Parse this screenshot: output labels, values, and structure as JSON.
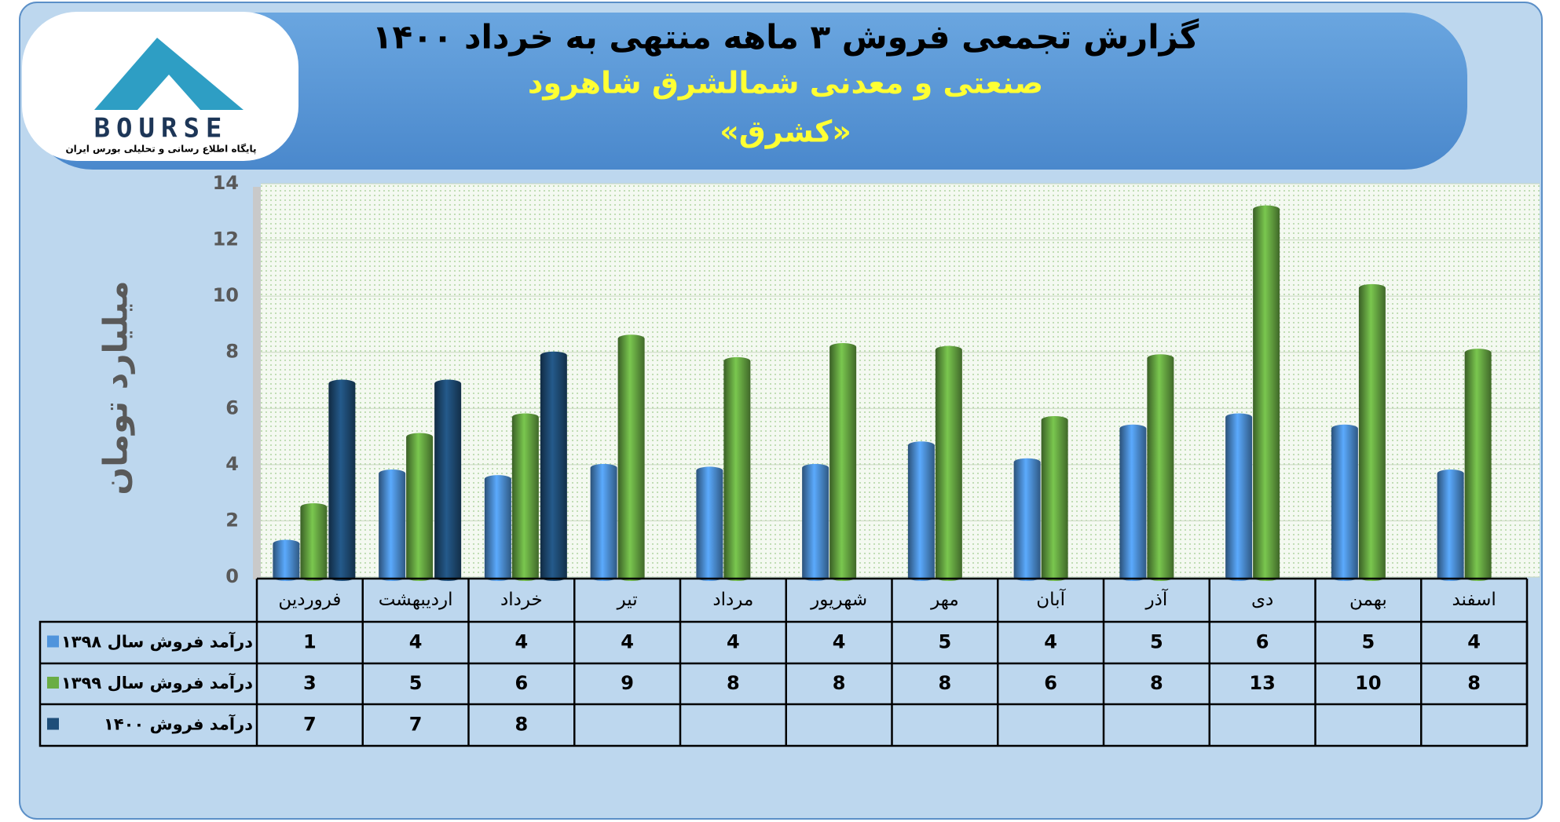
{
  "logo": {
    "text": "BOURSE",
    "subtitle": "پایگاه اطلاع رسانی و تحلیلی بورس ایران"
  },
  "chart_data": {
    "type": "bar",
    "title": "گزارش تجمعی فروش ۳ ماهه منتهی به خرداد ۱۴۰۰",
    "subtitle": "صنعتی و معدنی شمالشرق شاهرود",
    "subtitle2": "«کشرق»",
    "y_label": "میلیارد تومان",
    "categories": [
      "فروردین",
      "اردیبهشت",
      "خرداد",
      "تیر",
      "مرداد",
      "شهریور",
      "مهر",
      "آبان",
      "آذر",
      "دی",
      "بهمن",
      "اسفند"
    ],
    "series": [
      {
        "name": "درآمد فروش سال ۱۳۹۸",
        "color": "#4f94dc",
        "values": [
          1.3,
          3.8,
          3.6,
          4.0,
          3.9,
          4.0,
          4.8,
          4.2,
          5.4,
          5.8,
          5.4,
          3.8
        ],
        "value_labels": [
          "1",
          "4",
          "4",
          "4",
          "4",
          "4",
          "5",
          "4",
          "5",
          "6",
          "5",
          "4"
        ]
      },
      {
        "name": "درآمد فروش سال ۱۳۹۹",
        "color": "#6aad45",
        "values": [
          2.6,
          5.1,
          5.8,
          8.6,
          7.8,
          8.3,
          8.2,
          5.7,
          7.9,
          13.2,
          10.4,
          8.1
        ],
        "value_labels": [
          "3",
          "5",
          "6",
          "9",
          "8",
          "8",
          "8",
          "6",
          "8",
          "13",
          "10",
          "8"
        ]
      },
      {
        "name": "درآمد فروش ۱۴۰۰",
        "color": "#1f4e79",
        "values": [
          7.0,
          7.0,
          8.0,
          null,
          null,
          null,
          null,
          null,
          null,
          null,
          null,
          null
        ],
        "value_labels": [
          "7",
          "7",
          "8",
          null,
          null,
          null,
          null,
          null,
          null,
          null,
          null,
          null
        ]
      }
    ],
    "ylim": [
      0,
      14
    ],
    "yticks": [
      0,
      2,
      4,
      6,
      8,
      10,
      12,
      14
    ],
    "grid": true
  }
}
